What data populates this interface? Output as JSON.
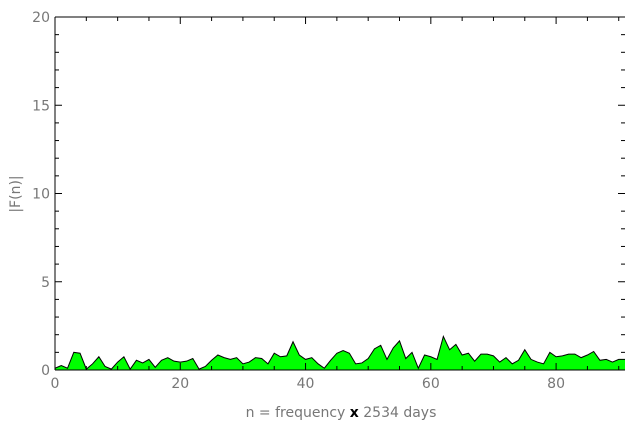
{
  "chart_data": {
    "type": "area",
    "xlabel": {
      "pre": "n = frequency ",
      "mid": "x",
      "post": " 2534 days"
    },
    "ylabel": "|F(n)|",
    "xlim": [
      0,
      91
    ],
    "ylim": [
      0,
      20
    ],
    "x_ticks": [
      0,
      20,
      40,
      60,
      80
    ],
    "y_ticks": [
      0,
      5,
      10,
      15,
      20
    ],
    "x_tick_labels": [
      "0",
      "20",
      "40",
      "60",
      "80"
    ],
    "y_tick_labels": [
      "0",
      "5",
      "10",
      "15",
      "20"
    ],
    "grid": false,
    "fill_color": "#00ff00",
    "line_color": "#000000",
    "series": [
      {
        "x": [
          0,
          1,
          2,
          3,
          4,
          5,
          6,
          7,
          8,
          9,
          10,
          11,
          12,
          13,
          14,
          15,
          16,
          17,
          18,
          19,
          20,
          21,
          22,
          23,
          24,
          25,
          26,
          27,
          28,
          29,
          30,
          31,
          32,
          33,
          34,
          35,
          36,
          37,
          38,
          39,
          40,
          41,
          42,
          43,
          44,
          45,
          46,
          47,
          48,
          49,
          50,
          51,
          52,
          53,
          54,
          55,
          56,
          57,
          58,
          59,
          60,
          61,
          62,
          63,
          64,
          65,
          66,
          67,
          68,
          69,
          70,
          71,
          72,
          73,
          74,
          75,
          76,
          77,
          78,
          79,
          80,
          81,
          82,
          83,
          84,
          85,
          86,
          87,
          88,
          89,
          90,
          91
        ],
        "values": [
          0.1,
          0.25,
          0.1,
          1.0,
          0.95,
          0.05,
          0.35,
          0.75,
          0.2,
          0.05,
          0.45,
          0.75,
          0.05,
          0.55,
          0.4,
          0.6,
          0.15,
          0.55,
          0.7,
          0.5,
          0.45,
          0.5,
          0.65,
          0.05,
          0.2,
          0.55,
          0.85,
          0.7,
          0.6,
          0.7,
          0.35,
          0.45,
          0.7,
          0.65,
          0.35,
          0.95,
          0.75,
          0.8,
          1.6,
          0.85,
          0.6,
          0.7,
          0.35,
          0.1,
          0.55,
          0.95,
          1.1,
          0.95,
          0.35,
          0.4,
          0.65,
          1.2,
          1.4,
          0.6,
          1.25,
          1.65,
          0.65,
          1.0,
          0.1,
          0.85,
          0.75,
          0.6,
          1.9,
          1.15,
          1.45,
          0.85,
          0.95,
          0.5,
          0.9,
          0.9,
          0.8,
          0.45,
          0.7,
          0.35,
          0.55,
          1.15,
          0.6,
          0.45,
          0.35,
          1.0,
          0.75,
          0.8,
          0.9,
          0.9,
          0.7,
          0.85,
          1.05,
          0.55,
          0.6,
          0.45,
          0.6,
          0.6
        ]
      }
    ]
  }
}
